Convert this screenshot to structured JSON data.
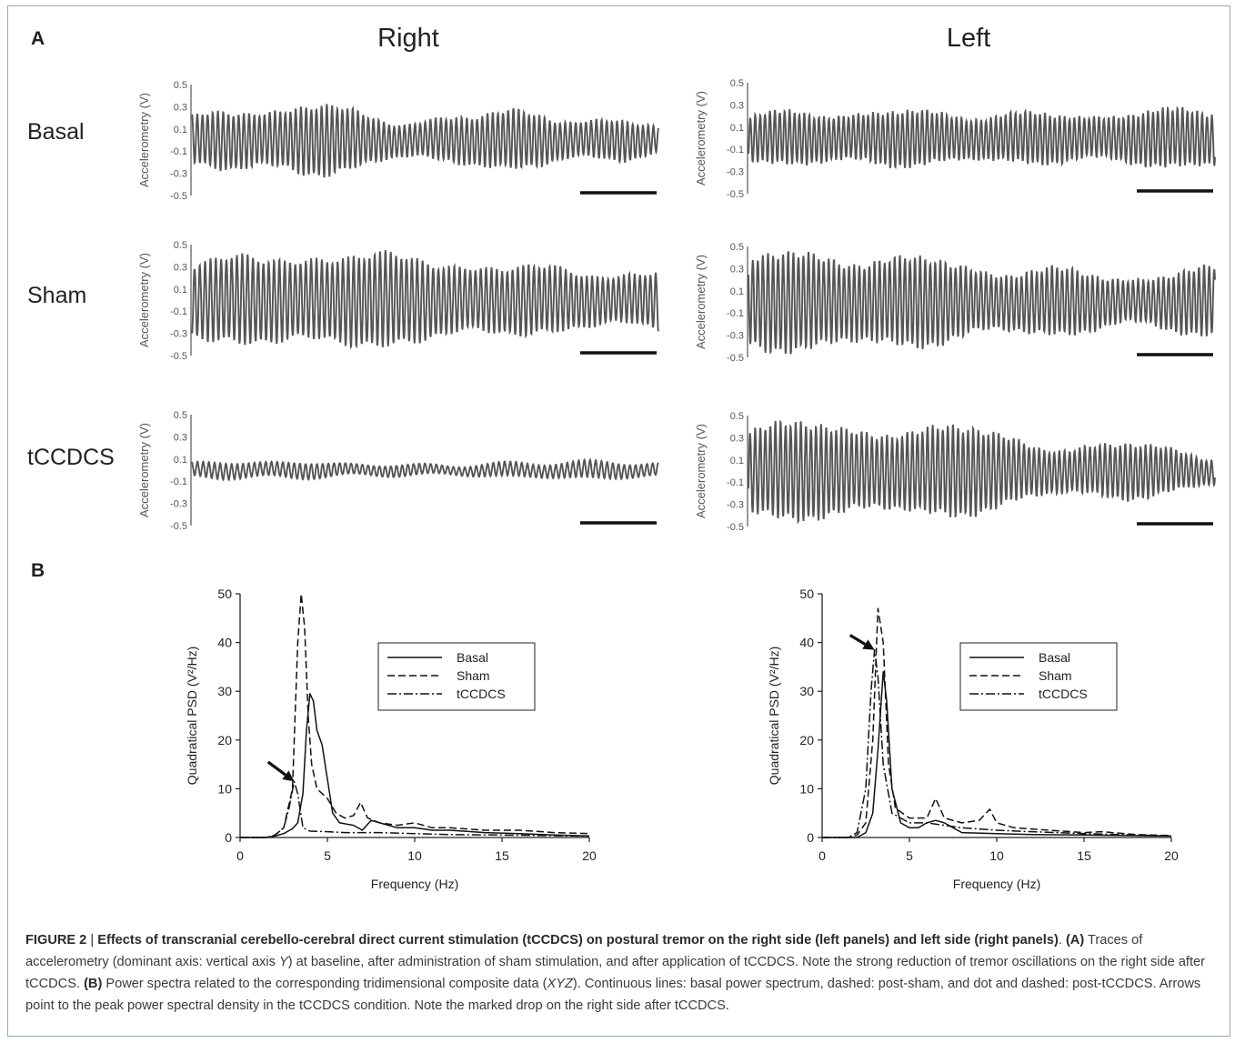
{
  "panel_a_label": "A",
  "panel_b_label": "B",
  "col_titles": [
    "Right",
    "Left"
  ],
  "row_labels": [
    "Basal",
    "Sham",
    "tCCDCS"
  ],
  "trace_ylabel": "Accelerometry (V)",
  "trace_ticks": [
    "0.5",
    "0.3",
    "0.1",
    "-0.1",
    "-0.3",
    "-0.5"
  ],
  "trace_color": "#555555",
  "chart_data": [
    {
      "type": "line",
      "panel": "B-right-side",
      "ylabel": "Quadratical PSD (V²/Hz)",
      "xlabel": "Frequency (Hz)",
      "xlim": [
        0,
        20
      ],
      "ylim": [
        0,
        50
      ],
      "xticks": [
        "0",
        "5",
        "10",
        "15",
        "20"
      ],
      "yticks": [
        "0",
        "10",
        "20",
        "30",
        "40",
        "50"
      ],
      "legend_position": "upper-right",
      "arrow": {
        "tip": [
          3.1,
          11.5
        ],
        "tail": [
          1.6,
          15.5
        ]
      },
      "series": [
        {
          "name": "Basal",
          "style": "solid",
          "points": [
            [
              0,
              0
            ],
            [
              1.5,
              0
            ],
            [
              2,
              0.3
            ],
            [
              2.5,
              0.8
            ],
            [
              3,
              1.8
            ],
            [
              3.3,
              3
            ],
            [
              3.6,
              9
            ],
            [
              3.8,
              22
            ],
            [
              4,
              29.5
            ],
            [
              4.2,
              28
            ],
            [
              4.4,
              22
            ],
            [
              4.7,
              19
            ],
            [
              5,
              12
            ],
            [
              5.3,
              5
            ],
            [
              5.7,
              3
            ],
            [
              6.5,
              2.5
            ],
            [
              7,
              1.5
            ],
            [
              7.5,
              3.5
            ],
            [
              8,
              3
            ],
            [
              9,
              2
            ],
            [
              10,
              2
            ],
            [
              11,
              1.5
            ],
            [
              12,
              1.5
            ],
            [
              14,
              1
            ],
            [
              16,
              0.8
            ],
            [
              18,
              0.5
            ],
            [
              20,
              0.3
            ]
          ]
        },
        {
          "name": "Sham",
          "style": "dashed",
          "points": [
            [
              0,
              0
            ],
            [
              1.5,
              0
            ],
            [
              2,
              0.5
            ],
            [
              2.5,
              2
            ],
            [
              3,
              10
            ],
            [
              3.3,
              40
            ],
            [
              3.5,
              50
            ],
            [
              3.7,
              43
            ],
            [
              3.9,
              25
            ],
            [
              4.1,
              15
            ],
            [
              4.4,
              10
            ],
            [
              5,
              8
            ],
            [
              5.5,
              5
            ],
            [
              6,
              4
            ],
            [
              6.5,
              4.5
            ],
            [
              6.9,
              7.2
            ],
            [
              7.3,
              4
            ],
            [
              8,
              3
            ],
            [
              9,
              2.5
            ],
            [
              10,
              3
            ],
            [
              11,
              2
            ],
            [
              12,
              2
            ],
            [
              14,
              1.5
            ],
            [
              16,
              1.5
            ],
            [
              18,
              1
            ],
            [
              20,
              0.8
            ]
          ]
        },
        {
          "name": "tCCDCS",
          "style": "dashdot",
          "points": [
            [
              0,
              0
            ],
            [
              1.5,
              0
            ],
            [
              2,
              0.5
            ],
            [
              2.5,
              2
            ],
            [
              2.8,
              6
            ],
            [
              3.1,
              11.5
            ],
            [
              3.3,
              9
            ],
            [
              3.6,
              2
            ],
            [
              4,
              1.3
            ],
            [
              5,
              1.2
            ],
            [
              6,
              1
            ],
            [
              7,
              1
            ],
            [
              8,
              1
            ],
            [
              10,
              0.8
            ],
            [
              12,
              0.6
            ],
            [
              15,
              0.5
            ],
            [
              20,
              0.3
            ]
          ]
        }
      ]
    },
    {
      "type": "line",
      "panel": "B-left-side",
      "ylabel": "Quadratical PSD (V²/Hz)",
      "xlabel": "Frequency (Hz)",
      "xlim": [
        0,
        20
      ],
      "ylim": [
        0,
        50
      ],
      "xticks": [
        "0",
        "5",
        "10",
        "15",
        "20"
      ],
      "yticks": [
        "0",
        "10",
        "20",
        "30",
        "40",
        "50"
      ],
      "legend_position": "upper-right",
      "arrow": {
        "tip": [
          3,
          38.5
        ],
        "tail": [
          1.6,
          41.5
        ]
      },
      "series": [
        {
          "name": "Basal",
          "style": "solid",
          "points": [
            [
              0,
              0
            ],
            [
              2,
              0
            ],
            [
              2.5,
              1
            ],
            [
              2.9,
              5
            ],
            [
              3.2,
              18
            ],
            [
              3.5,
              34
            ],
            [
              3.7,
              28
            ],
            [
              4,
              10
            ],
            [
              4.5,
              3
            ],
            [
              5,
              2
            ],
            [
              5.5,
              2
            ],
            [
              6,
              3
            ],
            [
              6.5,
              3.5
            ],
            [
              7,
              3
            ],
            [
              7.5,
              2
            ],
            [
              8,
              1
            ],
            [
              10,
              0.8
            ],
            [
              12,
              0.6
            ],
            [
              15,
              0.5
            ],
            [
              20,
              0.3
            ]
          ]
        },
        {
          "name": "Sham",
          "style": "dashed",
          "points": [
            [
              0,
              0
            ],
            [
              1.5,
              0
            ],
            [
              2,
              0.5
            ],
            [
              2.5,
              3
            ],
            [
              2.9,
              20
            ],
            [
              3.2,
              47
            ],
            [
              3.5,
              40
            ],
            [
              3.8,
              15
            ],
            [
              4.2,
              6
            ],
            [
              5,
              4
            ],
            [
              6,
              4
            ],
            [
              6.5,
              8
            ],
            [
              7,
              4
            ],
            [
              8,
              3
            ],
            [
              9,
              3.5
            ],
            [
              9.6,
              5.8
            ],
            [
              10,
              3
            ],
            [
              11,
              2
            ],
            [
              13,
              1.5
            ],
            [
              15,
              1
            ],
            [
              16,
              1.2
            ],
            [
              18,
              0.6
            ],
            [
              20,
              0.4
            ]
          ]
        },
        {
          "name": "tCCDCS",
          "style": "dashdot",
          "points": [
            [
              0,
              0
            ],
            [
              1.5,
              0
            ],
            [
              2,
              1
            ],
            [
              2.5,
              10
            ],
            [
              2.8,
              30
            ],
            [
              3,
              38.5
            ],
            [
              3.2,
              33
            ],
            [
              3.5,
              15
            ],
            [
              4,
              5
            ],
            [
              5,
              3
            ],
            [
              6,
              3
            ],
            [
              7,
              2.5
            ],
            [
              8,
              2
            ],
            [
              10,
              1.5
            ],
            [
              12,
              1.2
            ],
            [
              15,
              0.8
            ],
            [
              20,
              0.3
            ]
          ]
        }
      ]
    }
  ],
  "caption": {
    "figure_label": "FIGURE 2",
    "separator": " | ",
    "title": "Effects of transcranial cerebello-cerebral direct current stimulation (tCCDCS) on postural tremor on the right side (left panels) and left side (right panels)",
    "after_title": ". ",
    "a_ref": "(A)",
    "a_text_1": " Traces of accelerometry (dominant axis: vertical axis ",
    "a_axis": "Y",
    "a_text_2": ") at baseline, after administration of sham stimulation, and after application of tCCDCS. Note the strong reduction of tremor oscillations on the right side after tCCDCS. ",
    "b_ref": "(B)",
    "b_text_1": " Power spectra related to the corresponding tridimensional composite data (",
    "b_axis": "XYZ",
    "b_text_2": "). Continuous lines: basal power spectrum, dashed: post-sham, and dot and dashed: post-tCCDCS. Arrows point to the peak power spectral density in the tCCDCS condition. Note the marked drop on the right side after tCCDCS."
  }
}
